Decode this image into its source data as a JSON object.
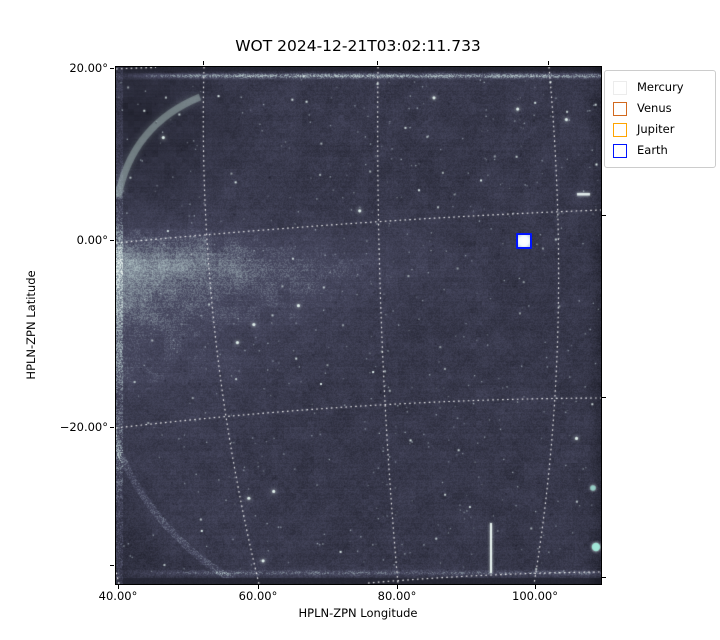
{
  "figure": {
    "title": "WOT 2024-12-21T03:02:11.733",
    "background_color": "#ffffff"
  },
  "axes": {
    "xlabel": "HPLN-ZPN Longitude",
    "ylabel": "HPLN-ZPN Latitude",
    "x_ticks": [
      {
        "label": "40.00°",
        "value": 40
      },
      {
        "label": "60.00°",
        "value": 60
      },
      {
        "label": "80.00°",
        "value": 80
      },
      {
        "label": "100.00°",
        "value": 100
      }
    ],
    "y_ticks": [
      {
        "label": "20.00°",
        "value": 20
      },
      {
        "label": "0.00°",
        "value": 0
      },
      {
        "label": "−20.00°",
        "value": -20
      }
    ]
  },
  "legend": {
    "entries": [
      {
        "label": "Mercury",
        "color": "#ffffff",
        "edge": "#ececec"
      },
      {
        "label": "Venus",
        "color": "#d2691e",
        "edge": "#d2691e"
      },
      {
        "label": "Jupiter",
        "color": "#ffa500",
        "edge": "#ffa500"
      },
      {
        "label": "Earth",
        "color": "#0014ff",
        "edge": "#0014ff"
      }
    ]
  },
  "chart_data": {
    "type": "heatmap",
    "title": "WOT 2024-12-21T03:02:11.733",
    "xlabel": "HPLN-ZPN Longitude",
    "ylabel": "HPLN-ZPN Latitude",
    "xlim": [
      39.5,
      109.5
    ],
    "ylim": [
      -36.5,
      18.5
    ],
    "x_tick_values_deg": [
      40,
      60,
      80,
      100
    ],
    "y_tick_values_deg": [
      20,
      0,
      -20
    ],
    "grid": {
      "on": true,
      "style": "dotted",
      "color": "#ffffff",
      "longitude_lines_deg": [
        40,
        60,
        80,
        100
      ],
      "latitude_lines_deg": [
        20,
        0,
        -20,
        -40
      ]
    },
    "legend_position": "upper right, outside axes",
    "markers": [
      {
        "name": "Earth",
        "lon_deg": 98.3,
        "lat_deg": -0.1,
        "shape": "open-square",
        "color": "#0014ff",
        "visible": true
      },
      {
        "name": "Mercury",
        "visible": false
      },
      {
        "name": "Venus",
        "visible": false
      },
      {
        "name": "Jupiter",
        "visible": false
      }
    ],
    "image_description": "Wide-field white-light heliospheric imager frame: dark slate-blue starfield with speckle noise, bright F-corona/streamer bands on the left near 0° latitude, bright detector edges top/bottom/left, dark vignetted corners with bright circular field-of-view arcs at top-left and bottom-left, a thin bright vertical streak near the bottom right, and a dotted white celestial graticule curved by the ZPN projection.",
    "colormap": {
      "dark": "#1c1d28",
      "mid": "#4a4b63",
      "light": "#9fb0b6",
      "bright": "#eef7f3",
      "star": "#dfeeea",
      "band": "#a9c3c4"
    }
  }
}
